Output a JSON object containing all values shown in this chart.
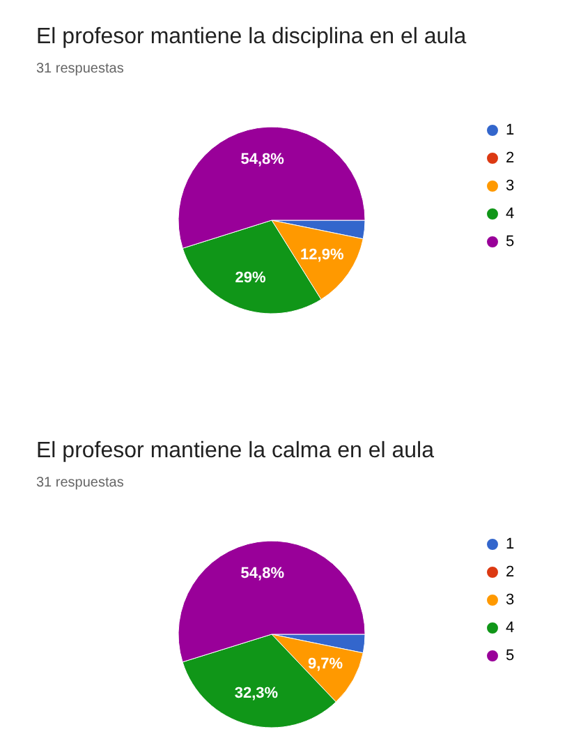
{
  "chart_data": [
    {
      "type": "pie",
      "title": "El profesor mantiene la disciplina en el aula",
      "subtitle": "31 respuestas",
      "categories": [
        "1",
        "2",
        "3",
        "4",
        "5"
      ],
      "values": [
        3.2,
        0,
        12.9,
        29,
        54.8
      ],
      "value_labels": [
        null,
        null,
        "12,9%",
        "29%",
        "54,8%"
      ],
      "colors": [
        "#3366cc",
        "#dc3912",
        "#ff9900",
        "#109618",
        "#990099"
      ],
      "legend": "right"
    },
    {
      "type": "pie",
      "title": "El profesor mantiene la calma en el aula",
      "subtitle": "31 respuestas",
      "categories": [
        "1",
        "2",
        "3",
        "4",
        "5"
      ],
      "values": [
        3.2,
        0,
        9.7,
        32.3,
        54.8
      ],
      "value_labels": [
        null,
        null,
        "9,7%",
        "32,3%",
        "54,8%"
      ],
      "colors": [
        "#3366cc",
        "#dc3912",
        "#ff9900",
        "#109618",
        "#990099"
      ],
      "legend": "right"
    }
  ]
}
